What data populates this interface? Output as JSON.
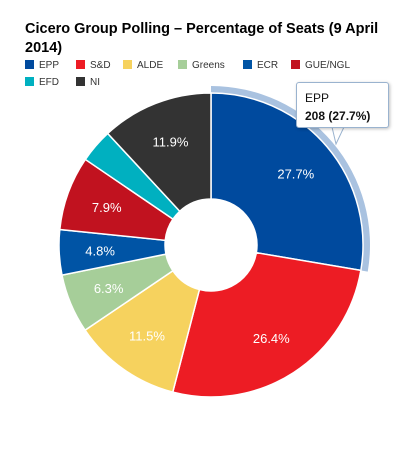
{
  "chart_data": {
    "type": "pie",
    "title": "Cicero Group Polling – Percentage of Seats (9 April 2014)",
    "series": [
      {
        "name": "EPP",
        "value": 27.7,
        "label": "27.7%",
        "color": "#004a9e"
      },
      {
        "name": "S&D",
        "value": 26.4,
        "label": "26.4%",
        "color": "#ed1c24"
      },
      {
        "name": "ALDE",
        "value": 11.5,
        "label": "11.5%",
        "color": "#f6d25e"
      },
      {
        "name": "Greens",
        "value": 6.3,
        "label": "6.3%",
        "color": "#a6ce99"
      },
      {
        "name": "ECR",
        "value": 4.8,
        "label": "4.8%",
        "color": "#0054a5"
      },
      {
        "name": "GUE/NGL",
        "value": 7.9,
        "label": "7.9%",
        "color": "#c1121f"
      },
      {
        "name": "EFD",
        "value": 3.6,
        "label": "",
        "color": "#00b0c0"
      },
      {
        "name": "NI",
        "value": 11.9,
        "label": "11.9%",
        "color": "#333333"
      }
    ],
    "legend_position": "top-left",
    "donut": true
  },
  "tooltip": {
    "name": "EPP",
    "value": "208 (27.7%)"
  }
}
